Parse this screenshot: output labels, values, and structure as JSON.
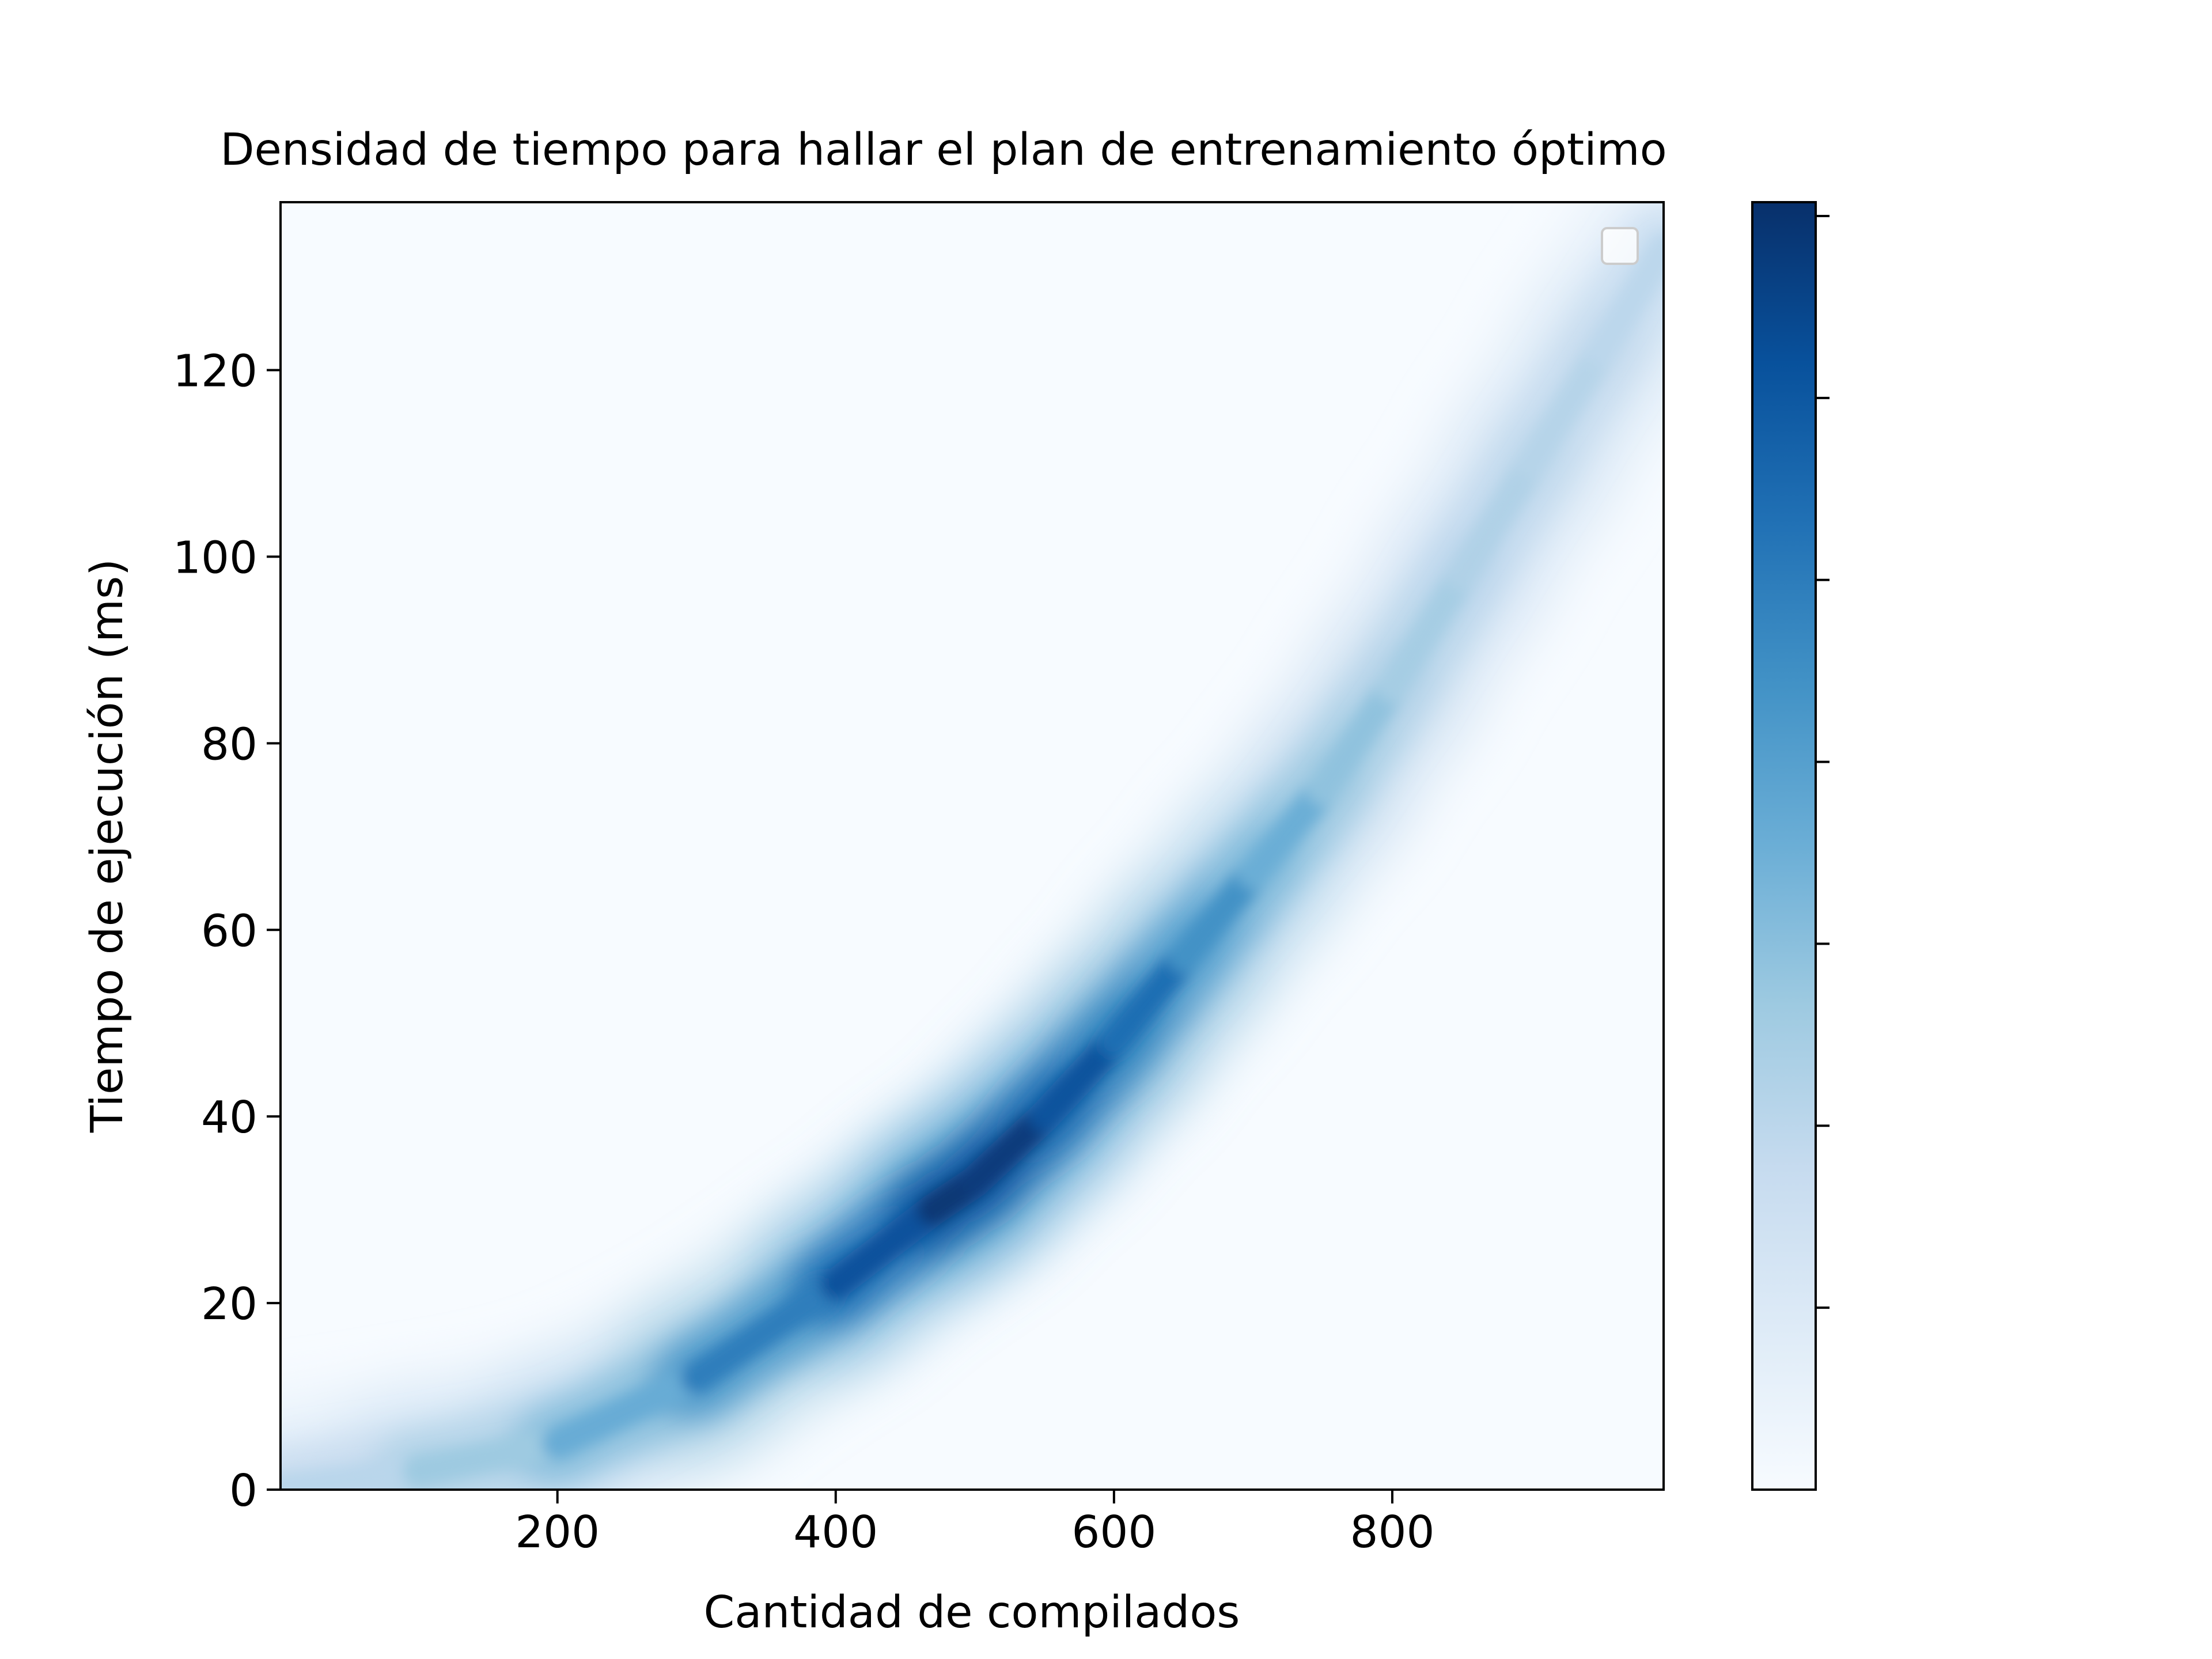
{
  "chart_data": {
    "type": "heatmap",
    "title": "Densidad de tiempo para hallar el plan de entrenamiento óptimo",
    "xlabel": "Cantidad de compilados",
    "ylabel": "Tiempo de ejecución (ms)",
    "xlim": [
      1,
      995
    ],
    "ylim": [
      0,
      138
    ],
    "xticks": [
      200,
      400,
      600,
      800
    ],
    "yticks": [
      0,
      20,
      40,
      60,
      80,
      100,
      120
    ],
    "colormap": "Blues",
    "colorbar_ticks_labeled": false,
    "colorbar_tick_count": 7,
    "legend": {
      "location": "upper right",
      "entries": []
    },
    "density_ridge": [
      {
        "x": 1,
        "y": 0,
        "intensity": 0.25
      },
      {
        "x": 100,
        "y": 2,
        "intensity": 0.33
      },
      {
        "x": 200,
        "y": 5,
        "intensity": 0.42
      },
      {
        "x": 300,
        "y": 12,
        "intensity": 0.6
      },
      {
        "x": 400,
        "y": 22,
        "intensity": 0.8
      },
      {
        "x": 470,
        "y": 30,
        "intensity": 0.95
      },
      {
        "x": 500,
        "y": 33,
        "intensity": 1.0
      },
      {
        "x": 550,
        "y": 40,
        "intensity": 0.92
      },
      {
        "x": 600,
        "y": 48,
        "intensity": 0.82
      },
      {
        "x": 650,
        "y": 57,
        "intensity": 0.7
      },
      {
        "x": 700,
        "y": 66,
        "intensity": 0.55
      },
      {
        "x": 750,
        "y": 75,
        "intensity": 0.45
      },
      {
        "x": 800,
        "y": 86,
        "intensity": 0.37
      },
      {
        "x": 850,
        "y": 98,
        "intensity": 0.33
      },
      {
        "x": 900,
        "y": 110,
        "intensity": 0.31
      },
      {
        "x": 950,
        "y": 122,
        "intensity": 0.29
      },
      {
        "x": 995,
        "y": 133,
        "intensity": 0.27
      }
    ]
  }
}
